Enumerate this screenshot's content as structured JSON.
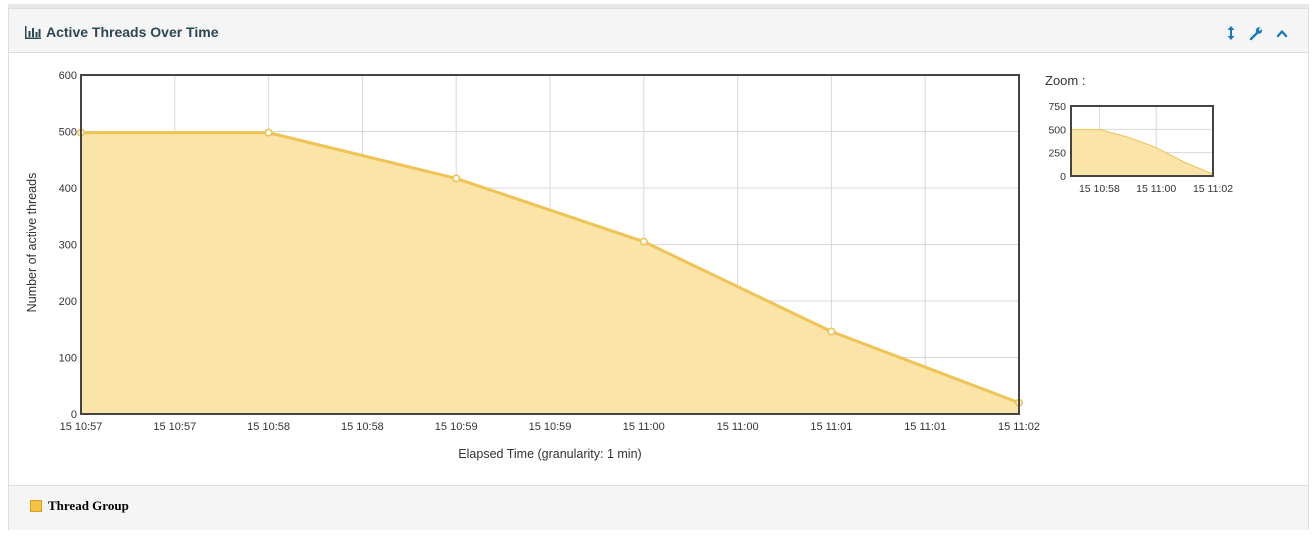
{
  "panel": {
    "title": "Active Threads Over Time",
    "icons": {
      "title": "bar-chart-icon",
      "resize": "vertical-resize-icon",
      "settings": "wrench-icon",
      "collapse": "chevron-up-icon"
    }
  },
  "colors": {
    "series_fill": "#fbe4a8",
    "series_line": "#efc354",
    "point_fill": "#ffffff",
    "grid": "#d8d8d8",
    "accent": "#1a7ab8"
  },
  "zoom": {
    "label": "Zoom :",
    "y_ticks": [
      "750",
      "500",
      "250",
      "0"
    ],
    "x_ticks": [
      "15 10:58",
      "15 11:00",
      "15 11:02"
    ]
  },
  "legend": {
    "label": "Thread Group"
  },
  "chart_data": {
    "type": "area",
    "title": "",
    "xlabel": "Elapsed Time (granularity: 1 min)",
    "ylabel": "Number of active threads",
    "ylim": [
      0,
      600
    ],
    "y_ticks": [
      "0",
      "100",
      "200",
      "300",
      "400",
      "500",
      "600"
    ],
    "x_ticks": [
      "15 10:57",
      "15 10:57",
      "15 10:58",
      "15 10:58",
      "15 10:59",
      "15 10:59",
      "15 11:00",
      "15 11:00",
      "15 11:01",
      "15 11:01",
      "15 11:02"
    ],
    "grid": true,
    "legend_position": "bottom-left",
    "series": [
      {
        "name": "Thread Group",
        "points": [
          {
            "x": "15 10:57",
            "y": 498
          },
          {
            "x": "15 10:58",
            "y": 498
          },
          {
            "x": "15 10:59",
            "y": 417
          },
          {
            "x": "15 11:00",
            "y": 305
          },
          {
            "x": "15 11:01",
            "y": 146
          },
          {
            "x": "15 11:02",
            "y": 20
          }
        ]
      }
    ]
  }
}
